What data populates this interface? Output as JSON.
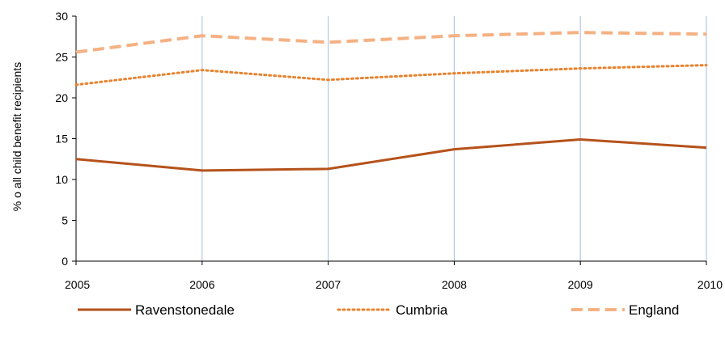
{
  "chart_data": {
    "type": "line",
    "title": "",
    "xlabel": "",
    "ylabel": "% o all child benefit recipients",
    "x": [
      "2005",
      "2006",
      "2007",
      "2008",
      "2009",
      "2010"
    ],
    "ylim": [
      0,
      30
    ],
    "yticks": [
      "0",
      "5",
      "10",
      "15",
      "20",
      "25",
      "30"
    ],
    "grid": "vertical",
    "legend": "bottom",
    "series": [
      {
        "name": "Ravenstonedale",
        "values": [
          12.5,
          11.1,
          11.3,
          13.7,
          14.9,
          13.9
        ],
        "color": "#b5521b",
        "style": "solid"
      },
      {
        "name": "Cumbria",
        "values": [
          21.6,
          23.4,
          22.2,
          23.0,
          23.6,
          24.0
        ],
        "color": "#e8832f",
        "style": "dotted"
      },
      {
        "name": "England",
        "values": [
          25.6,
          27.6,
          26.8,
          27.6,
          28.0,
          27.8
        ],
        "color": "#f4b183",
        "style": "dashed"
      }
    ]
  }
}
